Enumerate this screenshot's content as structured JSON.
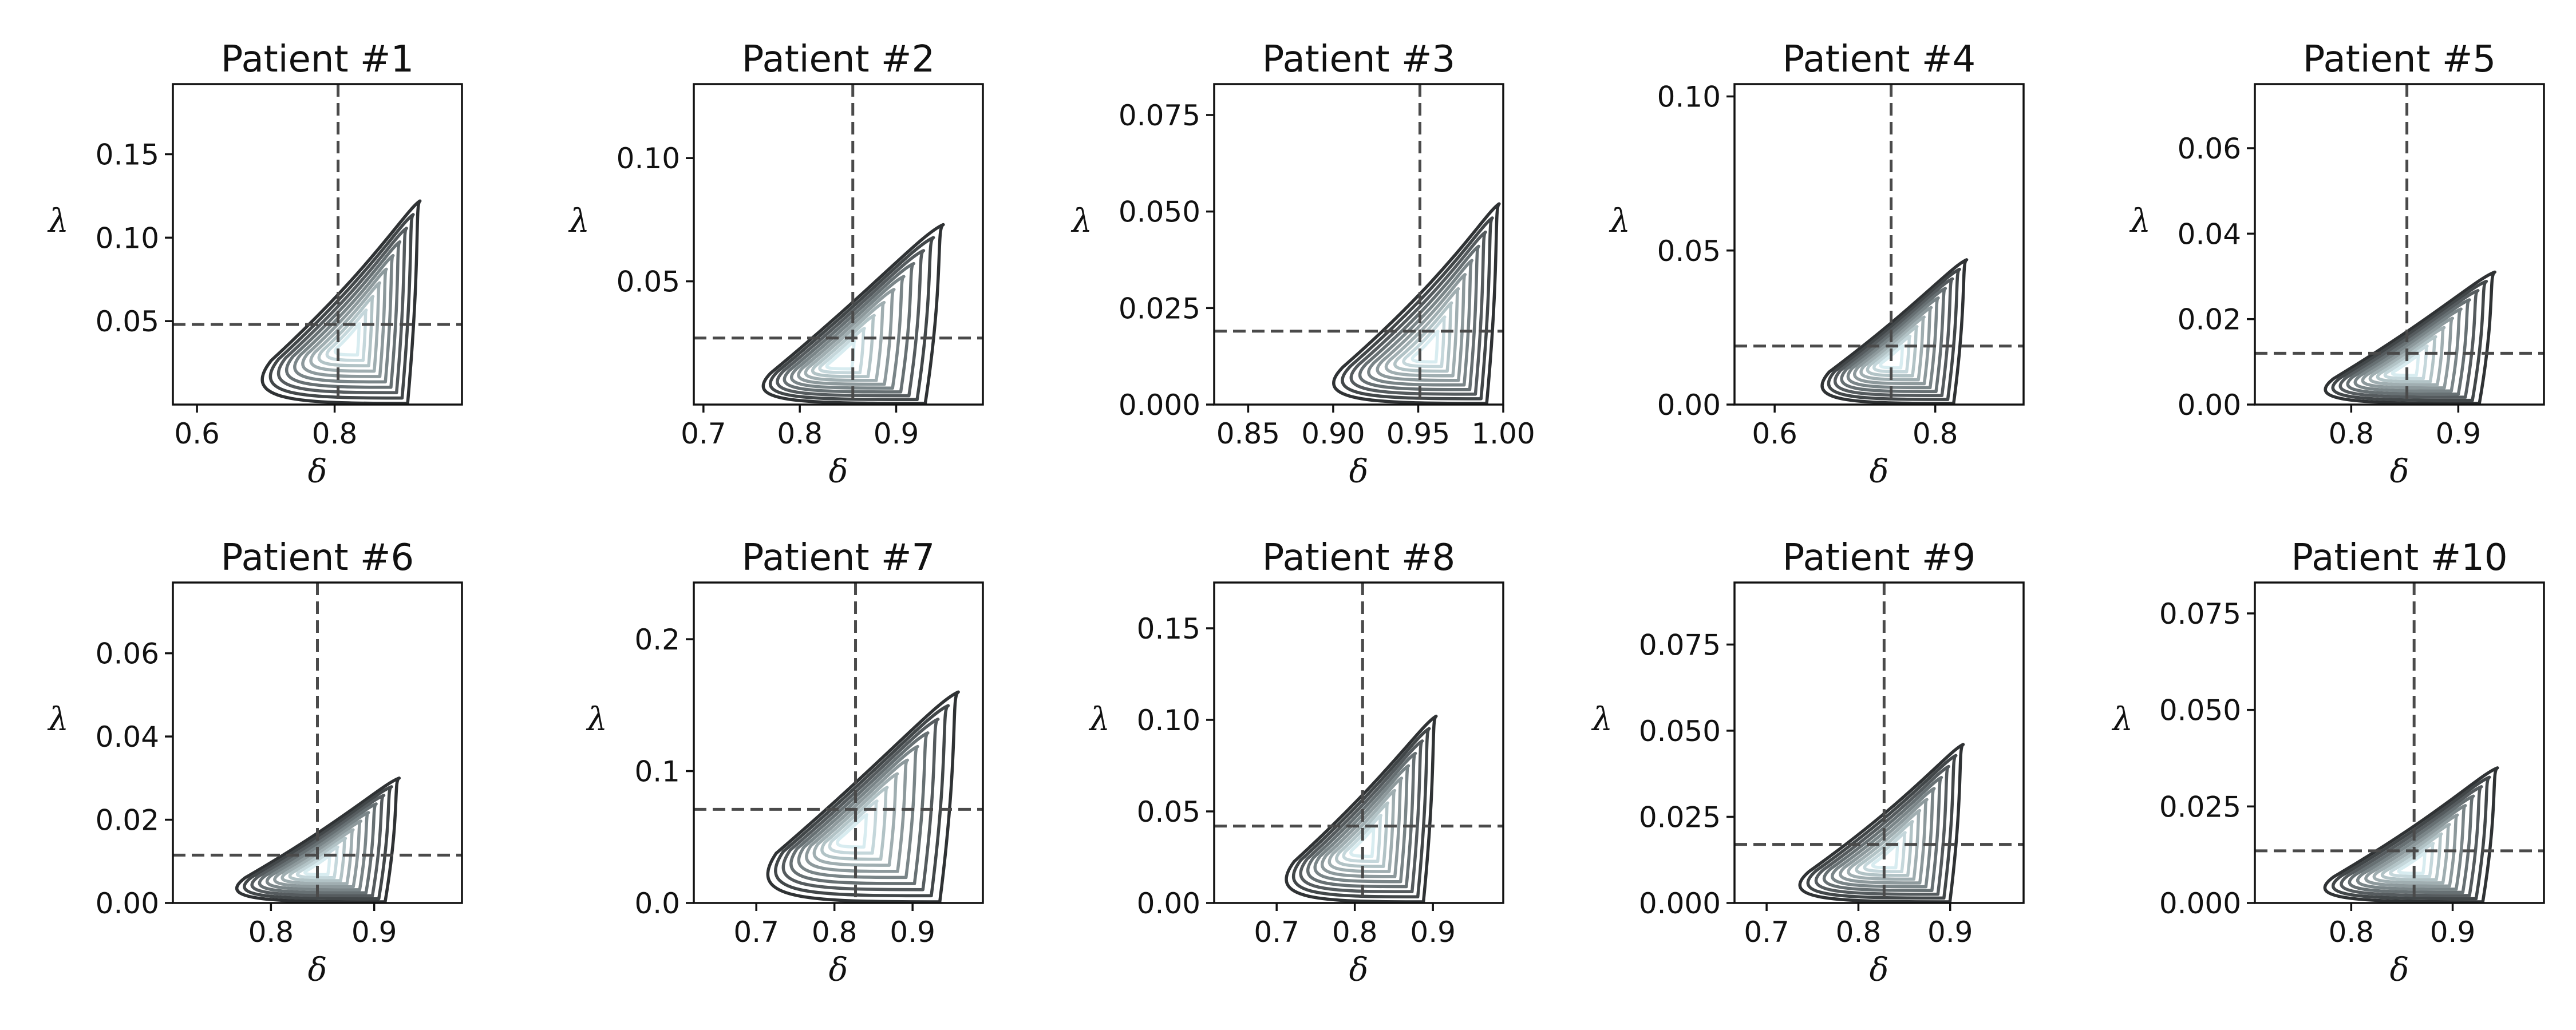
{
  "colors": {
    "outer_contour": "#2f3234",
    "inner_contour": "#d8ecf0",
    "reference_line": "#4a4a4a",
    "frame": "#111111"
  },
  "chart_data": [
    {
      "type": "contour",
      "title": "Patient #1",
      "xlabel": "δ",
      "ylabel": "λ",
      "xlim": [
        0.565,
        0.985
      ],
      "ylim": [
        0.0,
        0.192
      ],
      "xticks": [
        0.6,
        0.8
      ],
      "xtick_labels": [
        "0.6",
        "0.8"
      ],
      "yticks": [
        0.05,
        0.1,
        0.15
      ],
      "ytick_labels": [
        "0.05",
        "0.10",
        "0.15"
      ],
      "reference": {
        "x": 0.805,
        "y": 0.048
      },
      "density": {
        "mode_x": 0.82,
        "mode_y": 0.035,
        "x_low": 0.66,
        "x_high": 0.925,
        "y_high": 0.122,
        "levels": 10
      }
    },
    {
      "type": "contour",
      "title": "Patient #2",
      "xlabel": "δ",
      "ylabel": "λ",
      "xlim": [
        0.69,
        0.99
      ],
      "ylim": [
        0.0,
        0.13
      ],
      "xticks": [
        0.7,
        0.8,
        0.9
      ],
      "xtick_labels": [
        "0.7",
        "0.8",
        "0.9"
      ],
      "yticks": [
        0.05,
        0.1
      ],
      "ytick_labels": [
        "0.05",
        "0.10"
      ],
      "reference": {
        "x": 0.855,
        "y": 0.027
      },
      "density": {
        "mode_x": 0.84,
        "mode_y": 0.017,
        "x_low": 0.74,
        "x_high": 0.95,
        "y_high": 0.073,
        "levels": 10
      }
    },
    {
      "type": "contour",
      "title": "Patient #3",
      "xlabel": "δ",
      "ylabel": "λ",
      "xlim": [
        0.83,
        1.0
      ],
      "ylim": [
        0.0,
        0.083
      ],
      "xticks": [
        0.85,
        0.9,
        0.95,
        1.0
      ],
      "xtick_labels": [
        "0.85",
        "0.90",
        "0.95",
        "1.00"
      ],
      "yticks": [
        0.0,
        0.025,
        0.05,
        0.075
      ],
      "ytick_labels": [
        "0.000",
        "0.025",
        "0.050",
        "0.075"
      ],
      "reference": {
        "x": 0.951,
        "y": 0.019
      },
      "density": {
        "mode_x": 0.955,
        "mode_y": 0.013,
        "x_low": 0.885,
        "x_high": 0.998,
        "y_high": 0.052,
        "levels": 10
      }
    },
    {
      "type": "contour",
      "title": "Patient #4",
      "xlabel": "δ",
      "ylabel": "λ",
      "xlim": [
        0.55,
        0.91
      ],
      "ylim": [
        0.0,
        0.104
      ],
      "xticks": [
        0.6,
        0.8
      ],
      "xtick_labels": [
        "0.6",
        "0.8"
      ],
      "yticks": [
        0.0,
        0.05,
        0.1
      ],
      "ytick_labels": [
        "0.00",
        "0.05",
        "0.10"
      ],
      "reference": {
        "x": 0.745,
        "y": 0.019
      },
      "density": {
        "mode_x": 0.745,
        "mode_y": 0.014,
        "x_low": 0.635,
        "x_high": 0.84,
        "y_high": 0.047,
        "levels": 10
      }
    },
    {
      "type": "contour",
      "title": "Patient #5",
      "xlabel": "δ",
      "ylabel": "λ",
      "xlim": [
        0.71,
        0.98
      ],
      "ylim": [
        0.0,
        0.075
      ],
      "xticks": [
        0.8,
        0.9
      ],
      "xtick_labels": [
        "0.8",
        "0.9"
      ],
      "yticks": [
        0.0,
        0.02,
        0.04,
        0.06
      ],
      "ytick_labels": [
        "0.00",
        "0.02",
        "0.04",
        "0.06"
      ],
      "reference": {
        "x": 0.852,
        "y": 0.012
      },
      "density": {
        "mode_x": 0.85,
        "mode_y": 0.008,
        "x_low": 0.755,
        "x_high": 0.935,
        "y_high": 0.031,
        "levels": 10
      }
    },
    {
      "type": "contour",
      "title": "Patient #6",
      "xlabel": "δ",
      "ylabel": "λ",
      "xlim": [
        0.705,
        0.985
      ],
      "ylim": [
        0.0,
        0.077
      ],
      "xticks": [
        0.8,
        0.9
      ],
      "xtick_labels": [
        "0.8",
        "0.9"
      ],
      "yticks": [
        0.0,
        0.02,
        0.04,
        0.06
      ],
      "ytick_labels": [
        "0.00",
        "0.02",
        "0.04",
        "0.06"
      ],
      "reference": {
        "x": 0.845,
        "y": 0.0115
      },
      "density": {
        "mode_x": 0.845,
        "mode_y": 0.008,
        "x_low": 0.745,
        "x_high": 0.925,
        "y_high": 0.03,
        "levels": 10
      }
    },
    {
      "type": "contour",
      "title": "Patient #7",
      "xlabel": "δ",
      "ylabel": "λ",
      "xlim": [
        0.62,
        0.99
      ],
      "ylim": [
        0.0,
        0.243
      ],
      "xticks": [
        0.7,
        0.8,
        0.9
      ],
      "xtick_labels": [
        "0.7",
        "0.8",
        "0.9"
      ],
      "yticks": [
        0.0,
        0.1,
        0.2
      ],
      "ytick_labels": [
        "0.0",
        "0.1",
        "0.2"
      ],
      "reference": {
        "x": 0.827,
        "y": 0.071
      },
      "density": {
        "mode_x": 0.82,
        "mode_y": 0.05,
        "x_low": 0.685,
        "x_high": 0.96,
        "y_high": 0.16,
        "levels": 10
      }
    },
    {
      "type": "contour",
      "title": "Patient #8",
      "xlabel": "δ",
      "ylabel": "λ",
      "xlim": [
        0.62,
        0.99
      ],
      "ylim": [
        0.0,
        0.175
      ],
      "xticks": [
        0.7,
        0.8,
        0.9
      ],
      "xtick_labels": [
        "0.7",
        "0.8",
        "0.9"
      ],
      "yticks": [
        0.0,
        0.05,
        0.1,
        0.15
      ],
      "ytick_labels": [
        "0.00",
        "0.05",
        "0.10",
        "0.15"
      ],
      "reference": {
        "x": 0.81,
        "y": 0.042
      },
      "density": {
        "mode_x": 0.81,
        "mode_y": 0.03,
        "x_low": 0.685,
        "x_high": 0.905,
        "y_high": 0.102,
        "levels": 10
      }
    },
    {
      "type": "contour",
      "title": "Patient #9",
      "xlabel": "δ",
      "ylabel": "λ",
      "xlim": [
        0.665,
        0.98
      ],
      "ylim": [
        0.0,
        0.093
      ],
      "xticks": [
        0.7,
        0.8,
        0.9
      ],
      "xtick_labels": [
        "0.7",
        "0.8",
        "0.9"
      ],
      "yticks": [
        0.0,
        0.025,
        0.05,
        0.075
      ],
      "ytick_labels": [
        "0.000",
        "0.025",
        "0.050",
        "0.075"
      ],
      "reference": {
        "x": 0.828,
        "y": 0.017
      },
      "density": {
        "mode_x": 0.83,
        "mode_y": 0.012,
        "x_low": 0.71,
        "x_high": 0.915,
        "y_high": 0.046,
        "levels": 10
      }
    },
    {
      "type": "contour",
      "title": "Patient #10",
      "xlabel": "δ",
      "ylabel": "λ",
      "xlim": [
        0.705,
        0.99
      ],
      "ylim": [
        0.0,
        0.083
      ],
      "xticks": [
        0.8,
        0.9
      ],
      "xtick_labels": [
        "0.8",
        "0.9"
      ],
      "yticks": [
        0.0,
        0.025,
        0.05,
        0.075
      ],
      "ytick_labels": [
        "0.000",
        "0.025",
        "0.050",
        "0.075"
      ],
      "reference": {
        "x": 0.862,
        "y": 0.0135
      },
      "density": {
        "mode_x": 0.86,
        "mode_y": 0.009,
        "x_low": 0.75,
        "x_high": 0.945,
        "y_high": 0.035,
        "levels": 10
      }
    }
  ]
}
